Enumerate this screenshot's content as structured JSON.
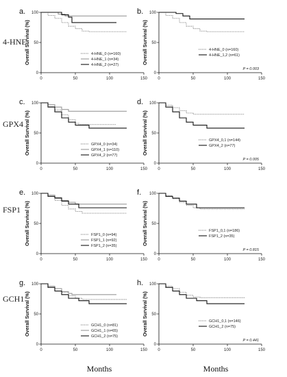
{
  "figure": {
    "x_axis_title": "Months",
    "y_axis_title": "Overall Survival (%)",
    "row_labels": [
      "4-HNE",
      "GPX4",
      "FSP1",
      "GCH1"
    ]
  },
  "chart_data": [
    {
      "panel": "a.",
      "type": "line",
      "curve": "kaplan-meier",
      "xlim": [
        0,
        150
      ],
      "ylim": [
        0,
        100
      ],
      "xticks": [
        0,
        50,
        100,
        150
      ],
      "yticks": [
        0,
        50,
        100
      ],
      "xlabel": "Months",
      "ylabel": "Overall Survival (%)",
      "legend_position": "bottom-right",
      "p_value": "",
      "series": [
        {
          "name": "4-HNE_0 (n=160)",
          "style": "dotted",
          "color": "#777777",
          "points": [
            [
              0,
              100
            ],
            [
              10,
              95
            ],
            [
              20,
              90
            ],
            [
              30,
              83
            ],
            [
              40,
              77
            ],
            [
              50,
              73
            ],
            [
              60,
              69
            ],
            [
              70,
              68
            ],
            [
              125,
              68
            ]
          ]
        },
        {
          "name": "4-HNE_1 (n=34)",
          "style": "solid",
          "color": "#999999",
          "points": [
            [
              0,
              100
            ],
            [
              25,
              97
            ],
            [
              35,
              94
            ],
            [
              125,
              94
            ]
          ]
        },
        {
          "name": "4-HNE_2 (n=27)",
          "style": "solid",
          "color": "#111111",
          "points": [
            [
              0,
              100
            ],
            [
              30,
              96
            ],
            [
              40,
              92
            ],
            [
              45,
              83
            ],
            [
              110,
              83
            ]
          ]
        }
      ]
    },
    {
      "panel": "b.",
      "type": "line",
      "curve": "kaplan-meier",
      "xlim": [
        0,
        150
      ],
      "ylim": [
        0,
        100
      ],
      "xticks": [
        0,
        50,
        100,
        150
      ],
      "yticks": [
        0,
        50,
        100
      ],
      "xlabel": "Months",
      "ylabel": "Overall Survival (%)",
      "legend_position": "bottom-right",
      "p_value": "P = 0.003",
      "series": [
        {
          "name": "4-HNE_0 (n=160)",
          "style": "dotted",
          "color": "#777777",
          "points": [
            [
              0,
              100
            ],
            [
              10,
              95
            ],
            [
              20,
              90
            ],
            [
              30,
              83
            ],
            [
              40,
              77
            ],
            [
              50,
              73
            ],
            [
              60,
              69
            ],
            [
              70,
              68
            ],
            [
              125,
              68
            ]
          ]
        },
        {
          "name": "4-HNE_1,2 (n=61)",
          "style": "solid",
          "color": "#111111",
          "points": [
            [
              0,
              100
            ],
            [
              25,
              98
            ],
            [
              35,
              94
            ],
            [
              45,
              89
            ],
            [
              125,
              89
            ]
          ]
        }
      ]
    },
    {
      "panel": "c.",
      "type": "line",
      "curve": "kaplan-meier",
      "xlim": [
        0,
        150
      ],
      "ylim": [
        0,
        100
      ],
      "xticks": [
        0,
        50,
        100,
        150
      ],
      "yticks": [
        0,
        50,
        100
      ],
      "xlabel": "Months",
      "ylabel": "Overall Survival (%)",
      "legend_position": "bottom-right",
      "p_value": "",
      "series": [
        {
          "name": "GPX4_0 (n=34)",
          "style": "dotted",
          "color": "#777777",
          "points": [
            [
              0,
              100
            ],
            [
              10,
              94
            ],
            [
              20,
              88
            ],
            [
              30,
              80
            ],
            [
              40,
              72
            ],
            [
              50,
              66
            ],
            [
              55,
              64
            ],
            [
              110,
              64
            ]
          ]
        },
        {
          "name": "GPX4_1 (n=110)",
          "style": "solid",
          "color": "#999999",
          "points": [
            [
              0,
              100
            ],
            [
              10,
              97
            ],
            [
              20,
              93
            ],
            [
              30,
              89
            ],
            [
              40,
              86
            ],
            [
              125,
              86
            ]
          ]
        },
        {
          "name": "GPX4_2 (n=77)",
          "style": "solid",
          "color": "#111111",
          "points": [
            [
              0,
              100
            ],
            [
              10,
              93
            ],
            [
              20,
              85
            ],
            [
              30,
              75
            ],
            [
              40,
              68
            ],
            [
              50,
              63
            ],
            [
              70,
              58
            ],
            [
              125,
              58
            ]
          ]
        }
      ]
    },
    {
      "panel": "d.",
      "type": "line",
      "curve": "kaplan-meier",
      "xlim": [
        0,
        150
      ],
      "ylim": [
        0,
        100
      ],
      "xticks": [
        0,
        50,
        100,
        150
      ],
      "yticks": [
        0,
        50,
        100
      ],
      "xlabel": "Months",
      "ylabel": "Overall Survival (%)",
      "legend_position": "bottom-right",
      "p_value": "P = 0.005",
      "series": [
        {
          "name": "GPX4_0,1 (n=144)",
          "style": "dotted",
          "color": "#777777",
          "points": [
            [
              0,
              100
            ],
            [
              10,
              96
            ],
            [
              20,
              92
            ],
            [
              30,
              87
            ],
            [
              40,
              83
            ],
            [
              50,
              81
            ],
            [
              125,
              81
            ]
          ]
        },
        {
          "name": "GPX4_2 (n=77)",
          "style": "solid",
          "color": "#111111",
          "points": [
            [
              0,
              100
            ],
            [
              10,
              93
            ],
            [
              20,
              85
            ],
            [
              30,
              75
            ],
            [
              40,
              68
            ],
            [
              50,
              63
            ],
            [
              70,
              58
            ],
            [
              125,
              58
            ]
          ]
        }
      ]
    },
    {
      "panel": "e.",
      "type": "line",
      "curve": "kaplan-meier",
      "xlim": [
        0,
        150
      ],
      "ylim": [
        0,
        100
      ],
      "xticks": [
        0,
        50,
        100,
        150
      ],
      "yticks": [
        0,
        50,
        100
      ],
      "xlabel": "Months",
      "ylabel": "Overall Survival (%)",
      "legend_position": "bottom-right",
      "p_value": "",
      "series": [
        {
          "name": "FSP1_0 (n=94)",
          "style": "dotted",
          "color": "#777777",
          "points": [
            [
              0,
              100
            ],
            [
              10,
              95
            ],
            [
              20,
              88
            ],
            [
              30,
              80
            ],
            [
              40,
              74
            ],
            [
              50,
              70
            ],
            [
              60,
              67
            ],
            [
              125,
              67
            ]
          ]
        },
        {
          "name": "FSP1_1 (n=92)",
          "style": "solid",
          "color": "#999999",
          "points": [
            [
              0,
              100
            ],
            [
              10,
              97
            ],
            [
              20,
              93
            ],
            [
              30,
              88
            ],
            [
              40,
              85
            ],
            [
              50,
              82
            ],
            [
              125,
              82
            ]
          ]
        },
        {
          "name": "FSP1_2 (n=35)",
          "style": "solid",
          "color": "#111111",
          "points": [
            [
              0,
              100
            ],
            [
              10,
              95
            ],
            [
              20,
              92
            ],
            [
              30,
              87
            ],
            [
              40,
              82
            ],
            [
              55,
              76
            ],
            [
              125,
              76
            ]
          ]
        }
      ]
    },
    {
      "panel": "f.",
      "type": "line",
      "curve": "kaplan-meier",
      "xlim": [
        0,
        150
      ],
      "ylim": [
        0,
        100
      ],
      "xticks": [
        0,
        50,
        100,
        150
      ],
      "yticks": [
        0,
        50,
        100
      ],
      "xlabel": "Months",
      "ylabel": "Overall Survival (%)",
      "legend_position": "bottom-right",
      "p_value": "P = 0.815",
      "series": [
        {
          "name": "FSP1_0,1 (n=186)",
          "style": "dotted",
          "color": "#777777",
          "points": [
            [
              0,
              100
            ],
            [
              10,
              96
            ],
            [
              20,
              91
            ],
            [
              30,
              85
            ],
            [
              40,
              80
            ],
            [
              50,
              76
            ],
            [
              60,
              74
            ],
            [
              125,
              74
            ]
          ]
        },
        {
          "name": "FSP1_2 (n=35)",
          "style": "solid",
          "color": "#111111",
          "points": [
            [
              0,
              100
            ],
            [
              10,
              95
            ],
            [
              20,
              92
            ],
            [
              30,
              87
            ],
            [
              40,
              82
            ],
            [
              55,
              76
            ],
            [
              125,
              76
            ]
          ]
        }
      ]
    },
    {
      "panel": "g.",
      "type": "line",
      "curve": "kaplan-meier",
      "xlim": [
        0,
        150
      ],
      "ylim": [
        0,
        100
      ],
      "xticks": [
        0,
        50,
        100,
        150
      ],
      "yticks": [
        0,
        50,
        100
      ],
      "xlabel": "Months",
      "ylabel": "Overall Survival (%)",
      "legend_position": "bottom-right",
      "p_value": "",
      "series": [
        {
          "name": "GCH1_0 (n=81)",
          "style": "dotted",
          "color": "#777777",
          "points": [
            [
              0,
              100
            ],
            [
              10,
              96
            ],
            [
              20,
              92
            ],
            [
              30,
              86
            ],
            [
              40,
              80
            ],
            [
              50,
              76
            ],
            [
              60,
              74
            ],
            [
              125,
              74
            ]
          ]
        },
        {
          "name": "GCH1_1 (n=65)",
          "style": "solid",
          "color": "#999999",
          "points": [
            [
              0,
              100
            ],
            [
              10,
              96
            ],
            [
              20,
              92
            ],
            [
              30,
              87
            ],
            [
              40,
              84
            ],
            [
              45,
              82
            ],
            [
              110,
              82
            ]
          ]
        },
        {
          "name": "GCH1_2 (n=75)",
          "style": "solid",
          "color": "#111111",
          "points": [
            [
              0,
              100
            ],
            [
              10,
              94
            ],
            [
              20,
              88
            ],
            [
              30,
              82
            ],
            [
              40,
              76
            ],
            [
              55,
              72
            ],
            [
              70,
              67
            ],
            [
              125,
              67
            ]
          ]
        }
      ]
    },
    {
      "panel": "h.",
      "type": "line",
      "curve": "kaplan-meier",
      "xlim": [
        0,
        150
      ],
      "ylim": [
        0,
        100
      ],
      "xticks": [
        0,
        50,
        100,
        150
      ],
      "yticks": [
        0,
        50,
        100
      ],
      "xlabel": "Months",
      "ylabel": "Overall Survival (%)",
      "legend_position": "bottom-right",
      "p_value": "P = 0.441",
      "series": [
        {
          "name": "GCH1_0,1 (n=146)",
          "style": "dotted",
          "color": "#777777",
          "points": [
            [
              0,
              100
            ],
            [
              10,
              96
            ],
            [
              20,
              92
            ],
            [
              30,
              86
            ],
            [
              40,
              81
            ],
            [
              50,
              78
            ],
            [
              60,
              77
            ],
            [
              125,
              77
            ]
          ]
        },
        {
          "name": "GCH1_2 (n=75)",
          "style": "solid",
          "color": "#111111",
          "points": [
            [
              0,
              100
            ],
            [
              10,
              94
            ],
            [
              20,
              88
            ],
            [
              30,
              82
            ],
            [
              40,
              76
            ],
            [
              55,
              72
            ],
            [
              70,
              67
            ],
            [
              125,
              67
            ]
          ]
        }
      ]
    }
  ]
}
